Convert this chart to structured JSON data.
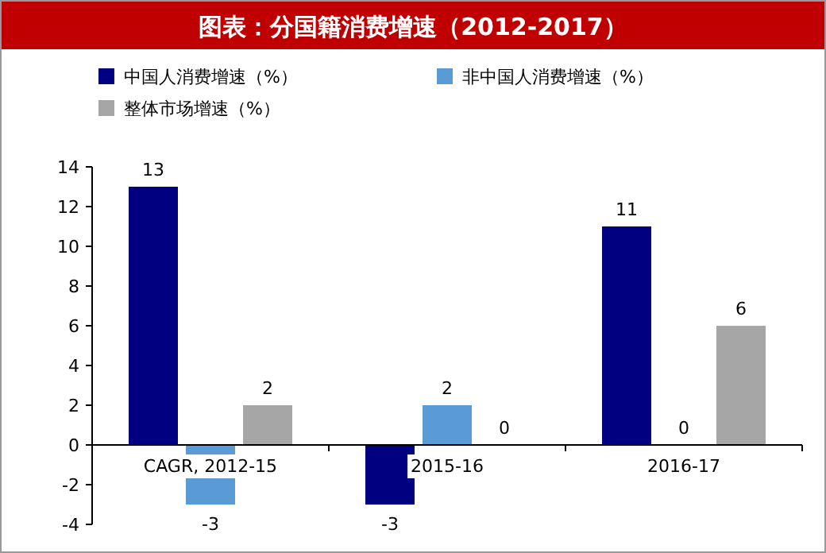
{
  "chart_data": {
    "type": "bar",
    "title": "图表：分国籍消费增速（2012-2017）",
    "categories": [
      "CAGR, 2012-15",
      "2015-16",
      "2016-17"
    ],
    "series": [
      {
        "name": "中国人消费增速（%）",
        "color": "#000080",
        "values": [
          13,
          -3,
          11
        ]
      },
      {
        "name": "非中国人消费增速（%）",
        "color": "#5b9bd5",
        "values": [
          -3,
          2,
          0
        ]
      },
      {
        "name": "整体市场增速（%）",
        "color": "#a6a6a6",
        "values": [
          2,
          0,
          6
        ]
      }
    ],
    "ylim": [
      -4,
      14
    ],
    "yticks": [
      -4,
      -2,
      0,
      2,
      4,
      6,
      8,
      10,
      12,
      14
    ],
    "data_labels": true,
    "legend": "top left",
    "grid": false
  }
}
